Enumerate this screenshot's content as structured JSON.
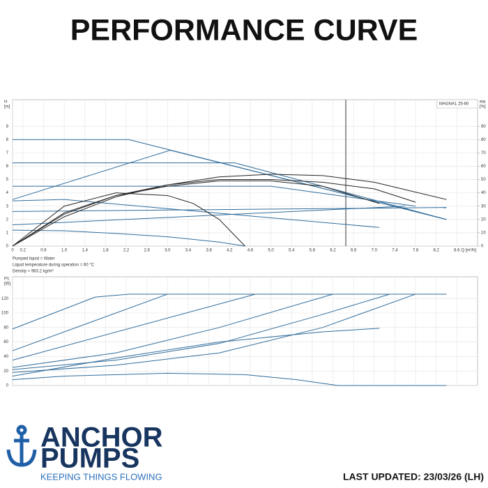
{
  "header": {
    "title": "PERFORMANCE CURVE"
  },
  "chart_data": [
    {
      "type": "line",
      "legend_label": "MAGNA1 25-80",
      "y_label": "H",
      "y_unit": "[m]",
      "y2_label": "eta",
      "y2_unit": "[%]",
      "x_label": "Q [m³/h]",
      "xlim": [
        0,
        9
      ],
      "ylim": [
        0,
        11
      ],
      "y2lim": [
        0,
        110
      ],
      "grid": true,
      "vline": 6.45,
      "vline_color": "#333333",
      "xticks": [
        0,
        0.2,
        0.6,
        {
          "value": 1,
          "label": "1.0"
        },
        1.4,
        1.8,
        2.2,
        2.6,
        {
          "value": 3,
          "label": "3.0"
        },
        3.4,
        3.8,
        4.2,
        4.6,
        {
          "value": 5,
          "label": "5.0"
        },
        5.4,
        5.8,
        6.2,
        6.6,
        {
          "value": 7,
          "label": "7.0"
        },
        7.4,
        7.8,
        8.2,
        8.6
      ],
      "yticks": [
        0,
        1,
        2,
        3,
        4,
        5,
        6,
        7,
        8,
        9
      ],
      "y2ticks": [
        0,
        10,
        20,
        30,
        40,
        50,
        60,
        70,
        80,
        90
      ],
      "series": [
        {
          "color": "#2f6b9a",
          "x": [
            0,
            2.25,
            8.4
          ],
          "values": [
            8,
            8,
            2
          ]
        },
        {
          "color": "#2f6b9a",
          "x": [
            0,
            4.3,
            6,
            8.4
          ],
          "values": [
            6.25,
            6.25,
            4.5,
            2
          ]
        },
        {
          "color": "#2f6b9a",
          "x": [
            0,
            3.05,
            8.4
          ],
          "values": [
            3.5,
            7.2,
            2
          ]
        },
        {
          "color": "#2f6b9a",
          "x": [
            0,
            5,
            7.8
          ],
          "values": [
            4.5,
            4.5,
            3
          ]
        },
        {
          "color": "#2f6b9a",
          "x": [
            0,
            1,
            7.1
          ],
          "values": [
            3.4,
            3.5,
            1.4
          ]
        },
        {
          "color": "#2f6b9a",
          "x": [
            0,
            7.6
          ],
          "values": [
            1.6,
            3
          ]
        },
        {
          "color": "#2f6b9a",
          "x": [
            0,
            8.4
          ],
          "values": [
            2.6,
            2.9
          ]
        },
        {
          "color": "#2f6b9a",
          "x": [
            0,
            1,
            2,
            3,
            4,
            4.5
          ],
          "values": [
            1.2,
            1.15,
            0.95,
            0.7,
            0.3,
            0
          ]
        },
        {
          "color": "#222222",
          "axis": "y2",
          "x": [
            0,
            1,
            2,
            3,
            4,
            5,
            6,
            7,
            8.4
          ],
          "values": [
            0,
            22,
            37,
            46,
            52,
            54,
            53,
            48,
            35
          ]
        },
        {
          "color": "#222222",
          "axis": "y2",
          "x": [
            0,
            1,
            2,
            3,
            4,
            5,
            6,
            7,
            7.8
          ],
          "values": [
            0,
            24,
            38,
            46,
            50,
            50,
            48,
            43,
            33
          ]
        },
        {
          "color": "#222222",
          "axis": "y2",
          "x": [
            0,
            1,
            2,
            3,
            4,
            5,
            6,
            7.1
          ],
          "values": [
            0,
            25,
            38,
            45,
            49,
            49,
            45,
            32
          ]
        },
        {
          "color": "#222222",
          "axis": "y2",
          "x": [
            0,
            1,
            2,
            3,
            3.5,
            4,
            4.5
          ],
          "values": [
            0,
            30,
            40,
            38,
            32,
            20,
            0
          ]
        }
      ]
    },
    {
      "type": "line",
      "y_label": "P1",
      "y_unit": "[W]",
      "xlim": [
        0,
        9
      ],
      "ylim": [
        0,
        150
      ],
      "grid": true,
      "xtick_labels": false,
      "xticks": [
        0,
        0.2,
        0.6,
        1,
        1.4,
        1.8,
        2.2,
        2.6,
        3,
        3.4,
        3.8,
        4.2,
        4.6,
        5,
        5.4,
        5.8,
        6.2,
        6.6,
        7,
        7.4,
        7.8,
        8.2,
        8.6
      ],
      "yticks": [
        0,
        20,
        40,
        60,
        80,
        100,
        120
      ],
      "series": [
        {
          "color": "#2f6b9a",
          "x": [
            0,
            1.6,
            2.25,
            8.4
          ],
          "values": [
            78,
            122,
            126,
            126
          ]
        },
        {
          "color": "#2f6b9a",
          "x": [
            0,
            3
          ],
          "values": [
            48,
            126
          ]
        },
        {
          "color": "#2f6b9a",
          "x": [
            0,
            4.7
          ],
          "values": [
            35,
            126
          ]
        },
        {
          "color": "#2f6b9a",
          "x": [
            0,
            2,
            4,
            6.2
          ],
          "values": [
            25,
            45,
            80,
            126
          ]
        },
        {
          "color": "#2f6b9a",
          "x": [
            0,
            2,
            4,
            6,
            7.3
          ],
          "values": [
            22,
            35,
            58,
            98,
            126
          ]
        },
        {
          "color": "#2f6b9a",
          "x": [
            0,
            2,
            4,
            6,
            7.8
          ],
          "values": [
            18,
            28,
            45,
            80,
            126
          ]
        },
        {
          "color": "#2f6b9a",
          "x": [
            0,
            2,
            4,
            6,
            7.1
          ],
          "values": [
            13,
            38,
            60,
            74,
            79
          ]
        },
        {
          "color": "#2f6b9a",
          "x": [
            0,
            1,
            3,
            4.5,
            5.5,
            6.3,
            8.4
          ],
          "values": [
            8,
            13,
            17,
            15,
            8,
            0,
            0
          ]
        }
      ]
    }
  ],
  "notes": [
    "Pumped liquid = Water",
    "Liquid temperature during operation = 60 °C",
    "Density = 983.2 kg/m³"
  ],
  "logo": {
    "line1": "ANCHOR",
    "line2": "PUMPS",
    "tagline": "KEEPING THINGS FLOWING"
  },
  "footer": {
    "updated": "LAST UPDATED: 23/03/26 (LH)"
  }
}
